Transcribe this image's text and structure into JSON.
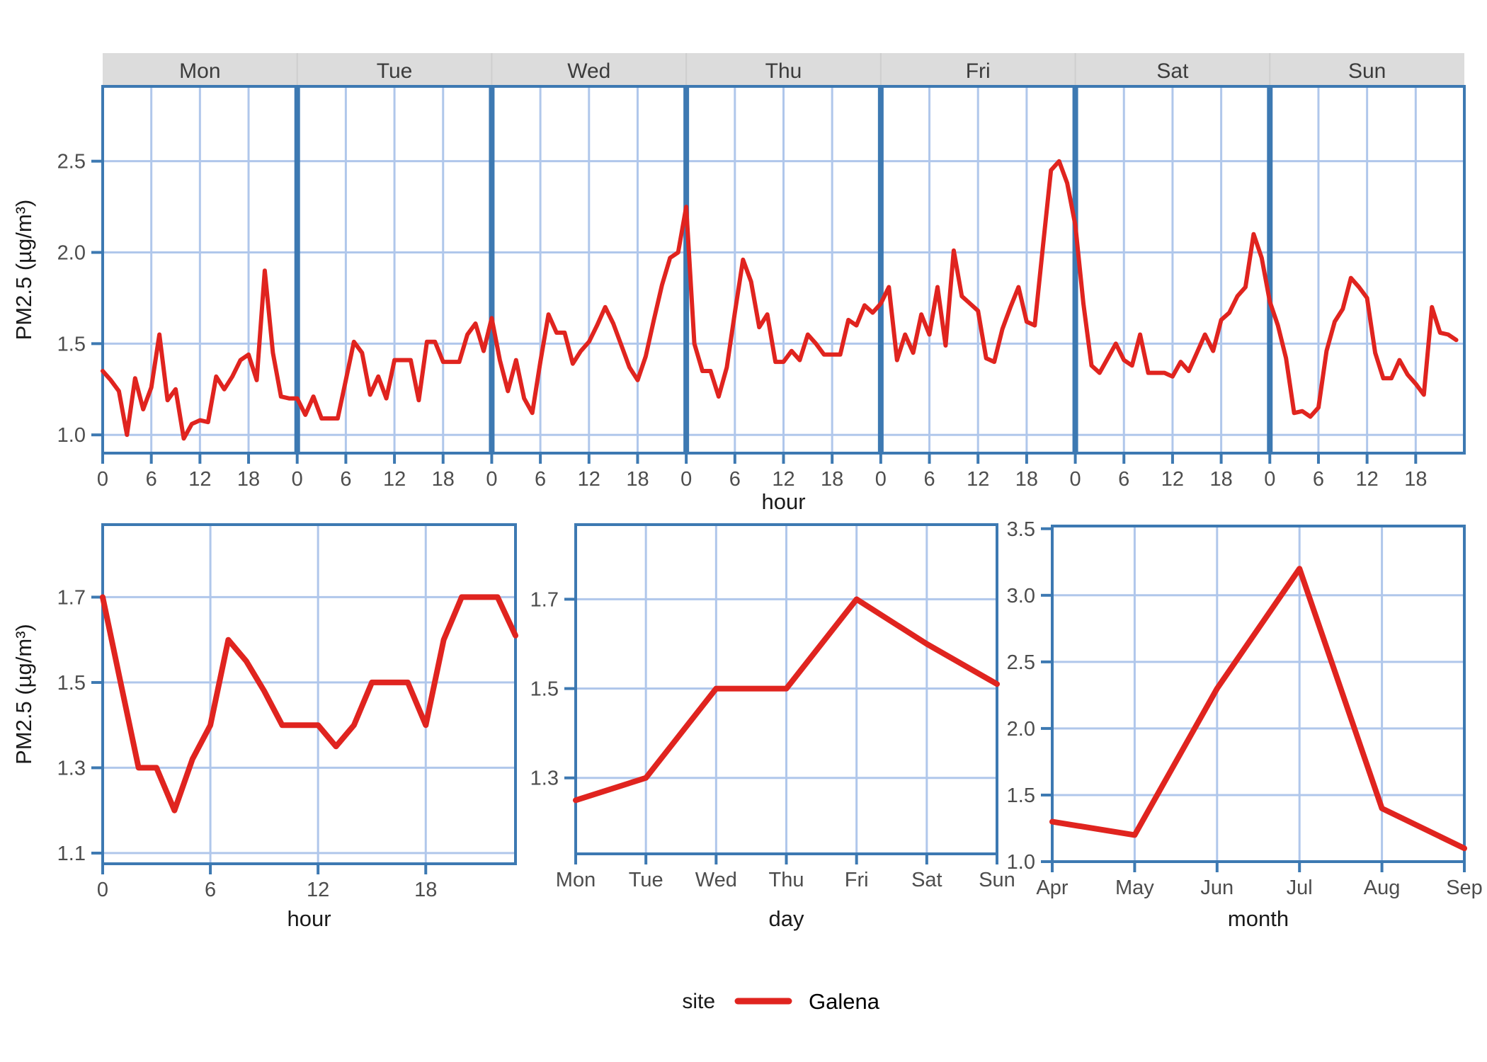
{
  "colors": {
    "series_red": "#E0241F",
    "panel_border_blue": "#3D79B2",
    "gridline_blue": "#B0C7EB",
    "strip_background": "#DCDCDC",
    "strip_text": "#3C3C3C",
    "tick_label_gray": "#4D4D4D",
    "axis_title": "#1A1A1A",
    "background": "#FFFFFF"
  },
  "legend": {
    "title": "site",
    "series_label": "Galena",
    "swatch": "red-line-swatch"
  },
  "chart_data": [
    {
      "id": "hourly-by-weekday",
      "type": "line",
      "title": "",
      "xlabel": "hour",
      "ylabel": "PM2.5 (µg/m³)",
      "facets": [
        "Mon",
        "Tue",
        "Wed",
        "Thu",
        "Fri",
        "Sat",
        "Sun"
      ],
      "x_ticks": [
        "0",
        "6",
        "12",
        "18"
      ],
      "y_ticks": [
        "1.0",
        "1.5",
        "2.0",
        "2.5"
      ],
      "xlim_per_facet": [
        0,
        24
      ],
      "ylim": [
        0.9,
        2.91
      ],
      "grid": true,
      "series_by_day": [
        {
          "day": "Mon",
          "values": [
            1.35,
            1.3,
            1.24,
            1.0,
            1.31,
            1.14,
            1.26,
            1.55,
            1.19,
            1.25,
            0.98,
            1.06,
            1.08,
            1.07,
            1.32,
            1.25,
            1.32,
            1.41,
            1.44,
            1.3,
            1.9,
            1.45,
            1.21,
            1.2
          ]
        },
        {
          "day": "Tue",
          "values": [
            1.2,
            1.11,
            1.21,
            1.09,
            1.09,
            1.09,
            1.3,
            1.51,
            1.45,
            1.22,
            1.32,
            1.2,
            1.41,
            1.41,
            1.41,
            1.19,
            1.51,
            1.51,
            1.4,
            1.4,
            1.4,
            1.55,
            1.61,
            1.46
          ]
        },
        {
          "day": "Wed",
          "values": [
            1.64,
            1.41,
            1.24,
            1.41,
            1.2,
            1.12,
            1.4,
            1.66,
            1.56,
            1.56,
            1.39,
            1.46,
            1.51,
            1.6,
            1.7,
            1.61,
            1.49,
            1.37,
            1.3,
            1.43,
            1.63,
            1.82,
            1.97,
            2.0
          ]
        },
        {
          "day": "Thu",
          "values": [
            2.25,
            1.5,
            1.35,
            1.35,
            1.21,
            1.37,
            1.67,
            1.96,
            1.84,
            1.59,
            1.66,
            1.4,
            1.4,
            1.46,
            1.41,
            1.55,
            1.5,
            1.44,
            1.44,
            1.44,
            1.63,
            1.6,
            1.71,
            1.67
          ]
        },
        {
          "day": "Fri",
          "values": [
            1.72,
            1.81,
            1.41,
            1.55,
            1.45,
            1.66,
            1.55,
            1.81,
            1.49,
            2.01,
            1.76,
            1.72,
            1.68,
            1.42,
            1.4,
            1.58,
            1.7,
            1.81,
            1.62,
            1.6,
            2.03,
            2.45,
            2.5,
            2.38
          ]
        },
        {
          "day": "Sat",
          "values": [
            2.15,
            1.72,
            1.38,
            1.34,
            1.42,
            1.5,
            1.41,
            1.38,
            1.55,
            1.34,
            1.34,
            1.34,
            1.32,
            1.4,
            1.35,
            1.45,
            1.55,
            1.46,
            1.63,
            1.67,
            1.76,
            1.81,
            2.1,
            1.97
          ]
        },
        {
          "day": "Sun",
          "values": [
            1.73,
            1.6,
            1.42,
            1.12,
            1.13,
            1.1,
            1.15,
            1.46,
            1.62,
            1.69,
            1.86,
            1.81,
            1.75,
            1.45,
            1.31,
            1.31,
            1.41,
            1.33,
            1.28,
            1.22,
            1.7,
            1.56,
            1.55,
            1.52
          ]
        }
      ]
    },
    {
      "id": "diurnal-average",
      "type": "line",
      "xlabel": "hour",
      "ylabel": "PM2.5 (µg/m³)",
      "x_ticks": [
        "0",
        "6",
        "12",
        "18"
      ],
      "y_ticks": [
        "1.1",
        "1.3",
        "1.5",
        "1.7"
      ],
      "xlim": [
        0,
        23
      ],
      "ylim": [
        1.075,
        1.87
      ],
      "grid": true,
      "x": [
        0,
        1,
        2,
        3,
        4,
        5,
        6,
        7,
        8,
        9,
        10,
        11,
        12,
        13,
        14,
        15,
        16,
        17,
        18,
        19,
        20,
        21,
        22,
        23
      ],
      "values": [
        1.7,
        1.5,
        1.3,
        1.3,
        1.2,
        1.32,
        1.4,
        1.6,
        1.55,
        1.48,
        1.4,
        1.4,
        1.4,
        1.35,
        1.4,
        1.5,
        1.5,
        1.5,
        1.4,
        1.6,
        1.7,
        1.7,
        1.7,
        1.61
      ]
    },
    {
      "id": "weekday-average",
      "type": "line",
      "xlabel": "day",
      "ylabel": "",
      "categories": [
        "Mon",
        "Tue",
        "Wed",
        "Thu",
        "Fri",
        "Sat",
        "Sun"
      ],
      "y_ticks": [
        "1.3",
        "1.5",
        "1.7"
      ],
      "ylim": [
        1.13,
        1.867
      ],
      "grid": true,
      "values": [
        1.25,
        1.3,
        1.5,
        1.5,
        1.7,
        1.6,
        1.51
      ]
    },
    {
      "id": "monthly-average",
      "type": "line",
      "xlabel": "month",
      "ylabel": "",
      "categories": [
        "Apr",
        "May",
        "Jun",
        "Jul",
        "Aug",
        "Sep"
      ],
      "y_ticks": [
        "1.0",
        "1.5",
        "2.0",
        "2.5",
        "3.0",
        "3.5"
      ],
      "ylim": [
        1.0,
        3.52
      ],
      "grid": true,
      "values": [
        1.3,
        1.2,
        2.3,
        3.2,
        1.4,
        1.1
      ]
    }
  ]
}
